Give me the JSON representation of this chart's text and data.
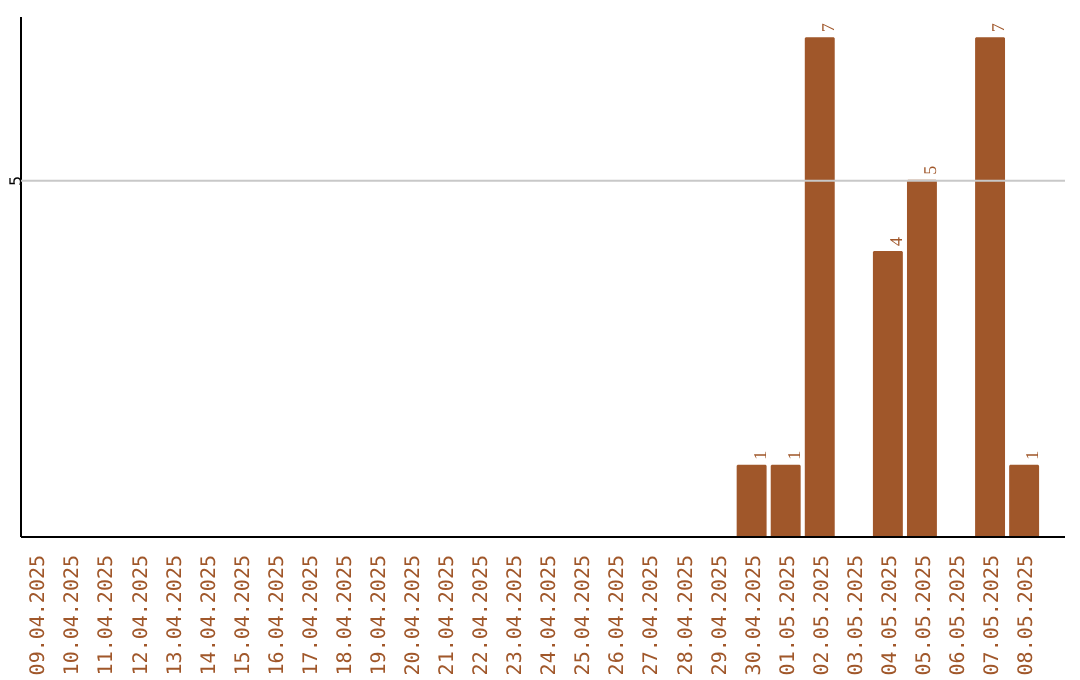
{
  "chart_data": {
    "type": "bar",
    "categories": [
      "09.04.2025",
      "10.04.2025",
      "11.04.2025",
      "12.04.2025",
      "13.04.2025",
      "14.04.2025",
      "15.04.2025",
      "16.04.2025",
      "17.04.2025",
      "18.04.2025",
      "19.04.2025",
      "20.04.2025",
      "21.04.2025",
      "22.04.2025",
      "23.04.2025",
      "24.04.2025",
      "25.04.2025",
      "26.04.2025",
      "27.04.2025",
      "28.04.2025",
      "29.04.2025",
      "30.04.2025",
      "01.05.2025",
      "02.05.2025",
      "03.05.2025",
      "04.05.2025",
      "05.05.2025",
      "06.05.2025",
      "07.05.2025",
      "08.05.2025"
    ],
    "values": [
      null,
      null,
      null,
      null,
      null,
      null,
      null,
      null,
      null,
      null,
      null,
      null,
      null,
      null,
      null,
      null,
      null,
      null,
      null,
      null,
      null,
      1,
      1,
      7,
      null,
      4,
      5,
      null,
      7,
      1
    ],
    "data_labels": true,
    "ylim": [
      0,
      7.3
    ],
    "color": "#a0572a",
    "ref_lines": [
      {
        "axis": "y",
        "value": 5,
        "label": "5",
        "color": "#c8c8c8"
      }
    ]
  }
}
